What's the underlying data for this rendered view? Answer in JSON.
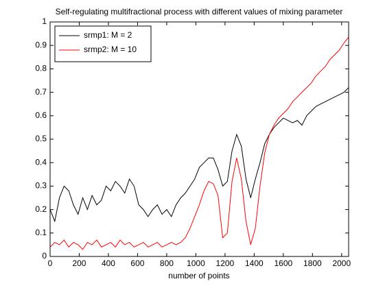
{
  "chart_data": {
    "type": "line",
    "title": "Self-regulating multifractional process with different values of mixing parameter",
    "xlabel": "number of points",
    "x": [
      0,
      32,
      64,
      96,
      128,
      160,
      192,
      224,
      256,
      288,
      320,
      352,
      384,
      416,
      448,
      480,
      512,
      544,
      576,
      608,
      640,
      672,
      704,
      736,
      768,
      800,
      832,
      864,
      896,
      928,
      960,
      992,
      1024,
      1056,
      1088,
      1120,
      1152,
      1184,
      1216,
      1248,
      1280,
      1312,
      1344,
      1376,
      1408,
      1440,
      1472,
      1504,
      1536,
      1568,
      1600,
      1632,
      1664,
      1696,
      1728,
      1760,
      1792,
      1824,
      1856,
      1888,
      1920,
      1952,
      1984,
      2016,
      2048
    ],
    "series": [
      {
        "name": "srmp1: M = 2",
        "color": "#000000",
        "values": [
          0.2,
          0.15,
          0.25,
          0.3,
          0.28,
          0.22,
          0.18,
          0.25,
          0.2,
          0.26,
          0.22,
          0.24,
          0.3,
          0.28,
          0.32,
          0.3,
          0.27,
          0.33,
          0.3,
          0.22,
          0.2,
          0.17,
          0.2,
          0.22,
          0.18,
          0.2,
          0.17,
          0.22,
          0.25,
          0.27,
          0.3,
          0.33,
          0.38,
          0.4,
          0.42,
          0.42,
          0.37,
          0.3,
          0.32,
          0.45,
          0.52,
          0.47,
          0.33,
          0.25,
          0.33,
          0.4,
          0.48,
          0.52,
          0.55,
          0.57,
          0.59,
          0.58,
          0.57,
          0.58,
          0.56,
          0.6,
          0.62,
          0.64,
          0.65,
          0.66,
          0.67,
          0.68,
          0.69,
          0.7,
          0.72
        ]
      },
      {
        "name": "srmp2: M = 10",
        "color": "#ff0000",
        "values": [
          0.04,
          0.06,
          0.05,
          0.07,
          0.04,
          0.06,
          0.05,
          0.03,
          0.06,
          0.05,
          0.07,
          0.04,
          0.05,
          0.06,
          0.04,
          0.07,
          0.05,
          0.06,
          0.04,
          0.05,
          0.06,
          0.04,
          0.05,
          0.06,
          0.04,
          0.05,
          0.06,
          0.05,
          0.06,
          0.08,
          0.12,
          0.17,
          0.22,
          0.28,
          0.32,
          0.31,
          0.26,
          0.08,
          0.1,
          0.32,
          0.42,
          0.33,
          0.15,
          0.05,
          0.12,
          0.3,
          0.44,
          0.52,
          0.56,
          0.59,
          0.61,
          0.63,
          0.66,
          0.68,
          0.7,
          0.72,
          0.74,
          0.77,
          0.79,
          0.81,
          0.84,
          0.86,
          0.88,
          0.91,
          0.935
        ]
      }
    ],
    "xlim": [
      0,
      2048
    ],
    "ylim": [
      0,
      1
    ],
    "xticks": [
      0,
      200,
      400,
      600,
      800,
      1000,
      1200,
      1400,
      1600,
      1800,
      2000
    ],
    "yticks": [
      0,
      0.1,
      0.2,
      0.3,
      0.4,
      0.5,
      0.6,
      0.7,
      0.8,
      0.9,
      1
    ],
    "legend": "upper left"
  }
}
